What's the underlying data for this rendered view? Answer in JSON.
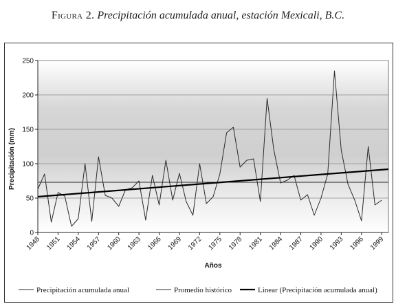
{
  "caption": {
    "figure_label": "Figura 2.",
    "text": "Precipitación acumulada anual, estación Mexicali, B.C."
  },
  "chart_data": {
    "type": "line",
    "title": "",
    "xlabel": "Años",
    "ylabel": "Precipitación (mm)",
    "ylim": [
      0,
      250
    ],
    "yticks": [
      0,
      50,
      100,
      150,
      200,
      250
    ],
    "xlim": [
      1948,
      2000
    ],
    "xticks": [
      1948,
      1951,
      1954,
      1957,
      1960,
      1963,
      1966,
      1969,
      1972,
      1975,
      1978,
      1981,
      1984,
      1987,
      1990,
      1993,
      1996,
      1999
    ],
    "grid": true,
    "legend_position": "bottom",
    "series": [
      {
        "name": "Precipitación acumulada anual",
        "color": "#2a2a2a",
        "x": [
          1948,
          1949,
          1950,
          1951,
          1952,
          1953,
          1954,
          1955,
          1956,
          1957,
          1958,
          1959,
          1960,
          1961,
          1962,
          1963,
          1964,
          1965,
          1966,
          1967,
          1968,
          1969,
          1970,
          1971,
          1972,
          1973,
          1974,
          1975,
          1976,
          1977,
          1978,
          1979,
          1980,
          1981,
          1982,
          1983,
          1984,
          1985,
          1986,
          1987,
          1988,
          1989,
          1990,
          1991,
          1992,
          1993,
          1994,
          1995,
          1996,
          1997,
          1998,
          1999,
          2000
        ],
        "values": [
          63,
          85,
          15,
          58,
          53,
          9,
          20,
          100,
          16,
          110,
          54,
          50,
          38,
          62,
          65,
          75,
          18,
          83,
          40,
          105,
          47,
          86,
          45,
          25,
          100,
          42,
          52,
          85,
          145,
          153,
          95,
          105,
          107,
          45,
          195,
          120,
          72,
          76,
          83,
          47,
          55,
          25,
          50,
          85,
          235,
          120,
          70,
          47,
          17,
          125,
          40,
          47,
          null
        ]
      },
      {
        "name": "Promedio histórico",
        "color": "#2a2a2a",
        "x": [
          1948,
          2000
        ],
        "values": [
          73,
          73
        ]
      },
      {
        "name": "Linear (Precipitación acumulada anual)",
        "color": "#000000",
        "x": [
          1948,
          2000
        ],
        "values": [
          52,
          92
        ]
      }
    ]
  }
}
